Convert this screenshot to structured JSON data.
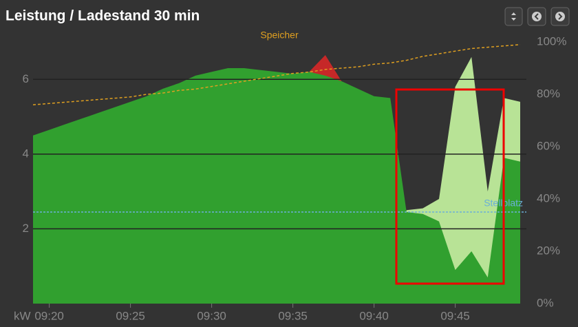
{
  "chart_data": {
    "type": "area",
    "title": "Leistung / Ladestand 30 min",
    "y_label": "kW",
    "x": [
      "09:19",
      "09:20",
      "09:21",
      "09:22",
      "09:23",
      "09:24",
      "09:25",
      "09:26",
      "09:27",
      "09:28",
      "09:29",
      "09:30",
      "09:31",
      "09:32",
      "09:33",
      "09:34",
      "09:35",
      "09:36",
      "09:37",
      "09:38",
      "09:39",
      "09:40",
      "09:41",
      "09:42",
      "09:43",
      "09:44",
      "09:45",
      "09:46",
      "09:47",
      "09:48",
      "09:49"
    ],
    "xlim": [
      "09:19",
      "09:49"
    ],
    "xticks": [
      "09:20",
      "09:25",
      "09:30",
      "09:35",
      "09:40",
      "09:45"
    ],
    "ylim": [
      0,
      7
    ],
    "yticks": [
      2,
      4,
      6
    ],
    "y2lim": [
      0,
      100
    ],
    "y2ticks": [
      {
        "value": 0,
        "label": "0%"
      },
      {
        "value": 20,
        "label": "20%"
      },
      {
        "value": 40,
        "label": "40%"
      },
      {
        "value": 60,
        "label": "60%"
      },
      {
        "value": 80,
        "label": "80%"
      },
      {
        "value": 100,
        "label": "100%"
      }
    ],
    "grid": true,
    "series": [
      {
        "kind": "area",
        "color": "#c62828",
        "values": [
          null,
          null,
          null,
          null,
          null,
          null,
          null,
          null,
          null,
          null,
          null,
          null,
          null,
          null,
          null,
          null,
          null,
          6.2,
          6.65,
          5.95,
          null,
          null,
          null,
          null,
          null,
          null,
          null,
          null,
          null,
          null,
          null
        ]
      },
      {
        "kind": "area",
        "color": "#b8e396",
        "values": [
          null,
          null,
          null,
          null,
          null,
          null,
          null,
          null,
          null,
          null,
          null,
          null,
          null,
          null,
          null,
          null,
          null,
          null,
          null,
          null,
          null,
          null,
          0,
          2.5,
          2.55,
          2.8,
          5.8,
          6.6,
          3.0,
          5.5,
          5.4
        ]
      },
      {
        "kind": "area",
        "color": "#31a02f",
        "values": [
          4.5,
          4.65,
          4.8,
          4.95,
          5.1,
          5.25,
          5.4,
          5.55,
          5.75,
          5.9,
          6.1,
          6.2,
          6.3,
          6.3,
          6.25,
          6.2,
          6.15,
          6.2,
          6.1,
          5.95,
          5.75,
          5.55,
          5.5,
          2.45,
          2.4,
          2.2,
          0.9,
          1.4,
          0.7,
          3.9,
          3.8
        ]
      },
      {
        "kind": "line",
        "name": "Speicher",
        "axis": "y2",
        "color": "#e0a020",
        "dashed": true,
        "values": [
          76,
          76.5,
          77,
          77.5,
          78,
          78.5,
          79,
          80,
          80.5,
          81.5,
          82,
          83,
          84,
          85,
          86,
          87,
          88,
          88.5,
          89.5,
          90,
          90.5,
          91.5,
          92,
          93,
          94.5,
          95.5,
          96.5,
          97.5,
          98,
          98.5,
          99
        ]
      }
    ],
    "hlines": [
      {
        "name": "Stellplatz",
        "value": 2.45,
        "color": "#6ab0d8"
      }
    ]
  }
}
